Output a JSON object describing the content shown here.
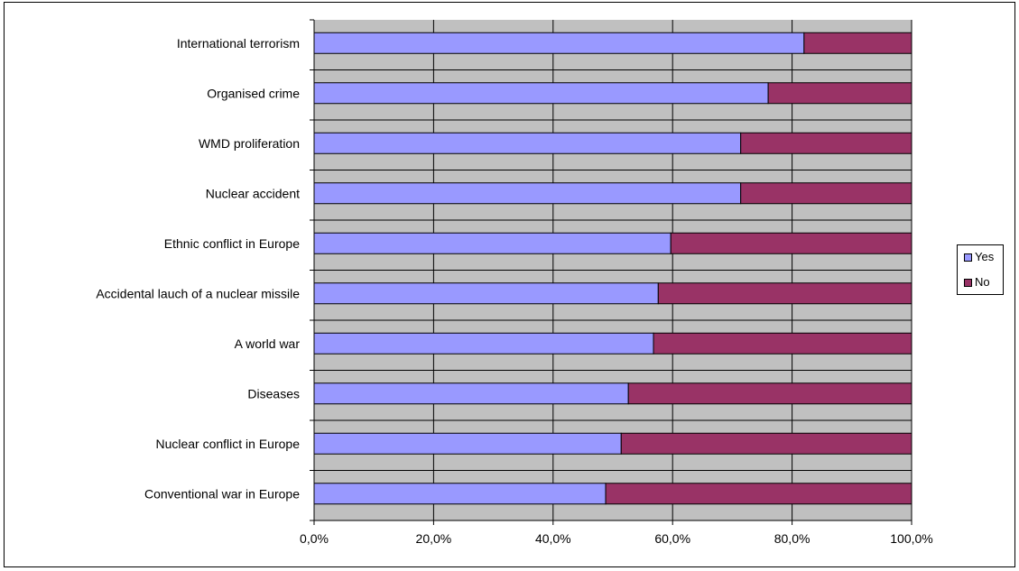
{
  "chart_data": {
    "type": "bar",
    "orientation": "horizontal",
    "stacked": "percent",
    "categories": [
      "International terrorism",
      "Organised crime",
      "WMD proliferation",
      "Nuclear accident",
      "Ethnic conflict in Europe",
      "Accidental lauch of a nuclear missile",
      "A world war",
      "Diseases",
      "Nuclear conflict in Europe",
      "Conventional war in Europe"
    ],
    "series": [
      {
        "name": "Yes",
        "color": "#9999ff",
        "values": [
          0.82,
          0.76,
          0.714,
          0.714,
          0.597,
          0.576,
          0.568,
          0.526,
          0.514,
          0.488
        ]
      },
      {
        "name": "No",
        "color": "#993366",
        "values": [
          0.18,
          0.24,
          0.286,
          0.286,
          0.403,
          0.424,
          0.432,
          0.474,
          0.486,
          0.512
        ]
      }
    ],
    "xlim": [
      0,
      1
    ],
    "xticks": [
      "0,0%",
      "20,0%",
      "40,0%",
      "60,0%",
      "80,0%",
      "100,0%"
    ],
    "grid": true,
    "plot_background": "#c0c0c0",
    "legend_position": "right"
  }
}
